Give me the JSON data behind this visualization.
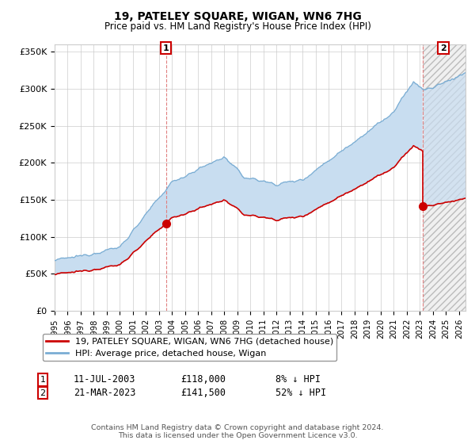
{
  "title": "19, PATELEY SQUARE, WIGAN, WN6 7HG",
  "subtitle": "Price paid vs. HM Land Registry's House Price Index (HPI)",
  "ylabel_ticks": [
    "£0",
    "£50K",
    "£100K",
    "£150K",
    "£200K",
    "£250K",
    "£300K",
    "£350K"
  ],
  "ytick_values": [
    0,
    50000,
    100000,
    150000,
    200000,
    250000,
    300000,
    350000
  ],
  "ylim": [
    0,
    360000
  ],
  "hpi_color": "#7aadd4",
  "price_color": "#cc0000",
  "fill_color": "#c8ddf0",
  "t1": 2003.53,
  "t2": 2023.22,
  "price1": 118000,
  "price2": 141500,
  "xlim_start": 1995,
  "xlim_end": 2026.5,
  "legend_line1": "19, PATELEY SQUARE, WIGAN, WN6 7HG (detached house)",
  "legend_line2": "HPI: Average price, detached house, Wigan",
  "annotation1_label": "1",
  "annotation1_date": "11-JUL-2003",
  "annotation1_price": "£118,000",
  "annotation1_hpi": "8% ↓ HPI",
  "annotation2_label": "2",
  "annotation2_date": "21-MAR-2023",
  "annotation2_price": "£141,500",
  "annotation2_hpi": "52% ↓ HPI",
  "footer": "Contains HM Land Registry data © Crown copyright and database right 2024.\nThis data is licensed under the Open Government Licence v3.0.",
  "background_color": "#ffffff"
}
